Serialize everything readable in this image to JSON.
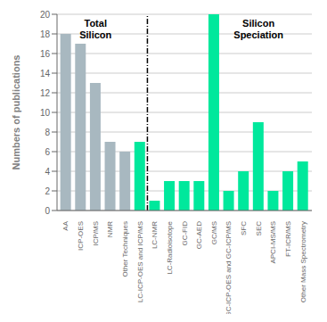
{
  "chart_data": {
    "type": "bar",
    "categories": [
      "AA",
      "ICP-OES",
      "ICP/MS",
      "NMR",
      "Other Techniques",
      "LC-ICP-OES and ICP/MS",
      "LC-NMR",
      "LC-Radioisotope",
      "GC-FID",
      "GC-AED",
      "GC/MS",
      "GC-ICP-OES and GC-ICP/MS",
      "SFC",
      "SEC",
      "APCI-MS/MS",
      "FT-ICR/MS",
      "Other Mass Spectrometry"
    ],
    "values": [
      18,
      17,
      13,
      7,
      6,
      7,
      1,
      3,
      3,
      3,
      20,
      2,
      4,
      9,
      2,
      4,
      5
    ],
    "colors": [
      "#a8b8c0",
      "#a8b8c0",
      "#a8b8c0",
      "#a8b8c0",
      "#a8b8c0",
      "#00e89c",
      "#00e89c",
      "#00e89c",
      "#00e89c",
      "#00e89c",
      "#00e89c",
      "#00e89c",
      "#00e89c",
      "#00e89c",
      "#00e89c",
      "#00e89c",
      "#00e89c"
    ],
    "y_label": "Numbers of publications",
    "ylim": [
      0,
      20
    ],
    "yticks": [
      0,
      2,
      4,
      6,
      8,
      10,
      12,
      14,
      16,
      18,
      20
    ],
    "grid": true,
    "annotations": [
      {
        "text": "Total\nSilicon",
        "x": 2,
        "y": 19.5
      },
      {
        "text": "Silicon\nSpeciation",
        "x": 13,
        "y": 19.5
      },
      {
        "type": "vline",
        "x": 5.5
      }
    ]
  }
}
